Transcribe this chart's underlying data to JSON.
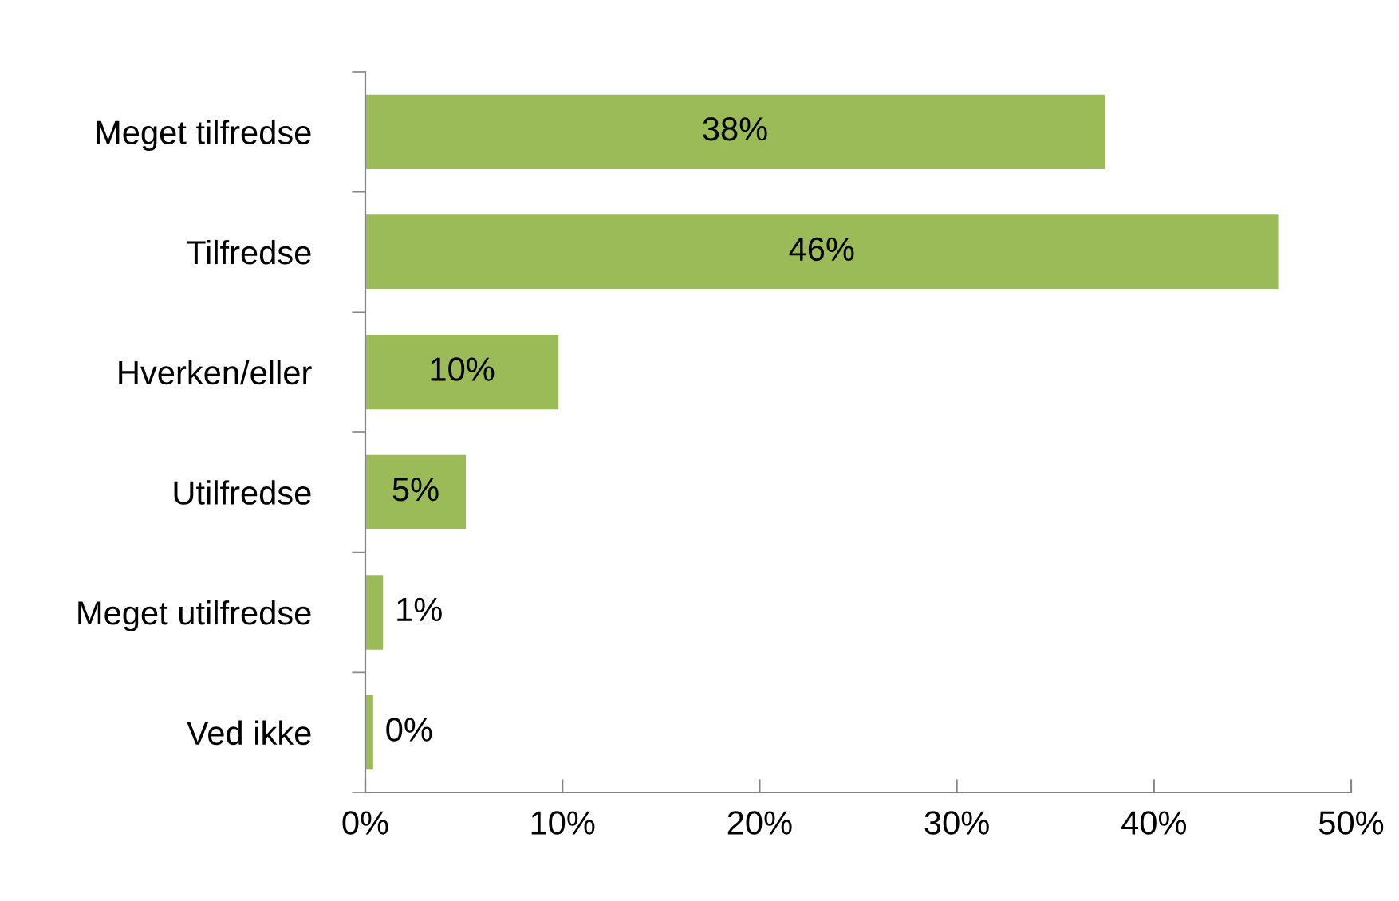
{
  "chart_data": {
    "type": "bar",
    "orientation": "horizontal",
    "categories": [
      "Meget tilfredse",
      "Tilfredse",
      "Hverken/eller",
      "Utilfredse",
      "Meget utilfredse",
      "Ved ikke"
    ],
    "values": [
      37.5,
      46.3,
      9.8,
      5.1,
      0.9,
      0.4
    ],
    "value_labels": [
      "38%",
      "46%",
      "10%",
      "5%",
      "1%",
      "0%"
    ],
    "color": "#9bbb59",
    "xlim": [
      0,
      50
    ],
    "xticks": [
      {
        "value": 0,
        "label": "0%"
      },
      {
        "value": 10,
        "label": "10%"
      },
      {
        "value": 20,
        "label": "20%"
      },
      {
        "value": 30,
        "label": "30%"
      },
      {
        "value": 40,
        "label": "40%"
      },
      {
        "value": 50,
        "label": "50%"
      }
    ],
    "grid": false,
    "legend": false
  }
}
